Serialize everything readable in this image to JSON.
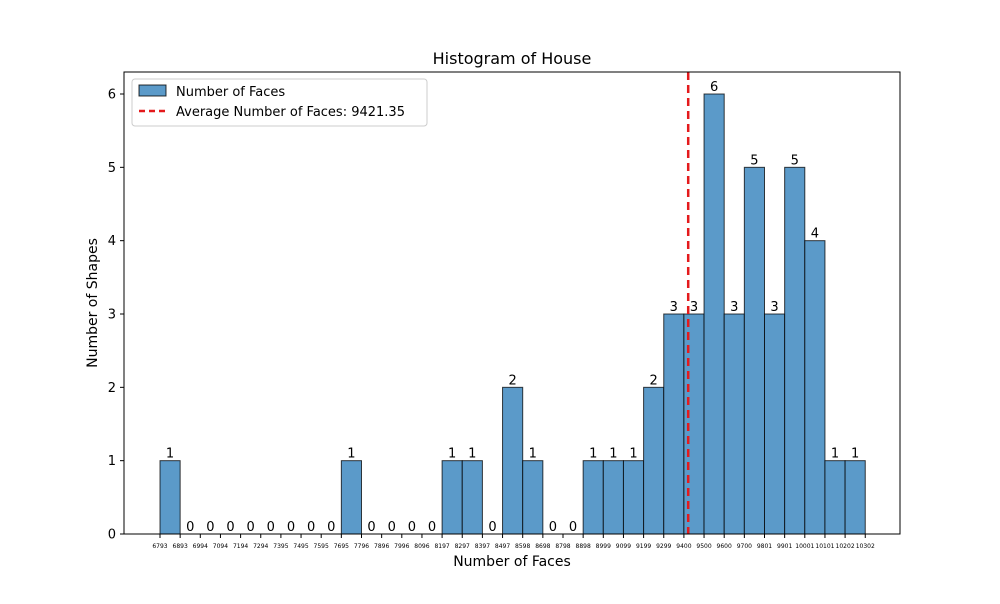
{
  "chart_data": {
    "type": "bar",
    "title": "Histogram of House",
    "xlabel": "Number of Faces",
    "ylabel": "Number of Shapes",
    "ylim": [
      0,
      6.3
    ],
    "yticks": [
      0,
      1,
      2,
      3,
      4,
      5,
      6
    ],
    "bin_edges": [
      6793,
      6893,
      6994,
      7094,
      7194,
      7294,
      7395,
      7495,
      7595,
      7695,
      7796,
      7896,
      7996,
      8096,
      8197,
      8297,
      8397,
      8497,
      8598,
      8698,
      8798,
      8898,
      8999,
      9099,
      9199,
      9299,
      9400,
      9500,
      9600,
      9700,
      9801,
      9901,
      10001,
      10101,
      10202,
      10302
    ],
    "counts": [
      1,
      0,
      0,
      0,
      0,
      0,
      0,
      0,
      0,
      1,
      0,
      0,
      0,
      0,
      1,
      1,
      0,
      2,
      1,
      0,
      0,
      1,
      1,
      1,
      2,
      3,
      3,
      6,
      3,
      5,
      3,
      5,
      4,
      1,
      1
    ],
    "series": [
      {
        "name": "Number of Faces",
        "color": "#5b9ac9"
      }
    ],
    "average": {
      "value": 9421.35,
      "label": "Average Number of Faces: 9421.35",
      "color": "#e41a1c"
    },
    "legend_position": "upper-left",
    "grid": false
  }
}
